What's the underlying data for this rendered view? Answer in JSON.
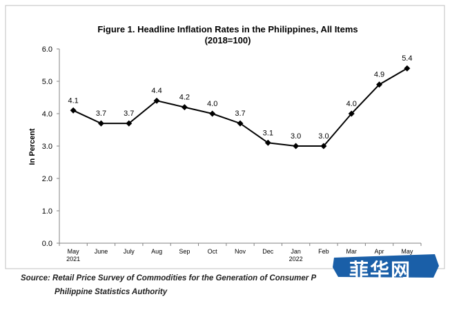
{
  "chart_data": {
    "type": "line",
    "title": "Figure 1. Headline Inflation Rates in the Philippines, All Items",
    "subtitle": "(2018=100)",
    "ylabel": "In Percent",
    "xlabel": "",
    "categories": [
      "May",
      "June",
      "July",
      "Aug",
      "Sep",
      "Oct",
      "Nov",
      "Dec",
      "Jan",
      "Feb",
      "Mar",
      "Apr",
      "May"
    ],
    "year_labels": [
      "2021",
      "",
      "",
      "",
      "",
      "",
      "",
      "",
      "2022",
      "",
      "",
      "",
      ""
    ],
    "series": [
      {
        "values": [
          4.1,
          3.7,
          3.7,
          4.4,
          4.2,
          4.0,
          3.7,
          3.1,
          3.0,
          3.0,
          4.0,
          4.9,
          5.4
        ]
      }
    ],
    "data_labels": [
      "4.1",
      "3.7",
      "3.7",
      "4.4",
      "4.2",
      "4.0",
      "3.7",
      "3.1",
      "3.0",
      "3.0",
      "4.0",
      "4.9",
      "5.4"
    ],
    "ylim": [
      0,
      6
    ],
    "yticks": [
      "0.0",
      "1.0",
      "2.0",
      "3.0",
      "4.0",
      "5.0",
      "6.0"
    ],
    "grid": false,
    "legend": "none",
    "line_color": "#000000",
    "marker": "diamond"
  },
  "source": {
    "line1": "Source: Retail Price Survey of Commodities for the Generation of Consumer P",
    "line2": "Philippine Statistics Authority"
  },
  "watermark": {
    "text": "菲华网",
    "color": "#1a5fa8"
  }
}
